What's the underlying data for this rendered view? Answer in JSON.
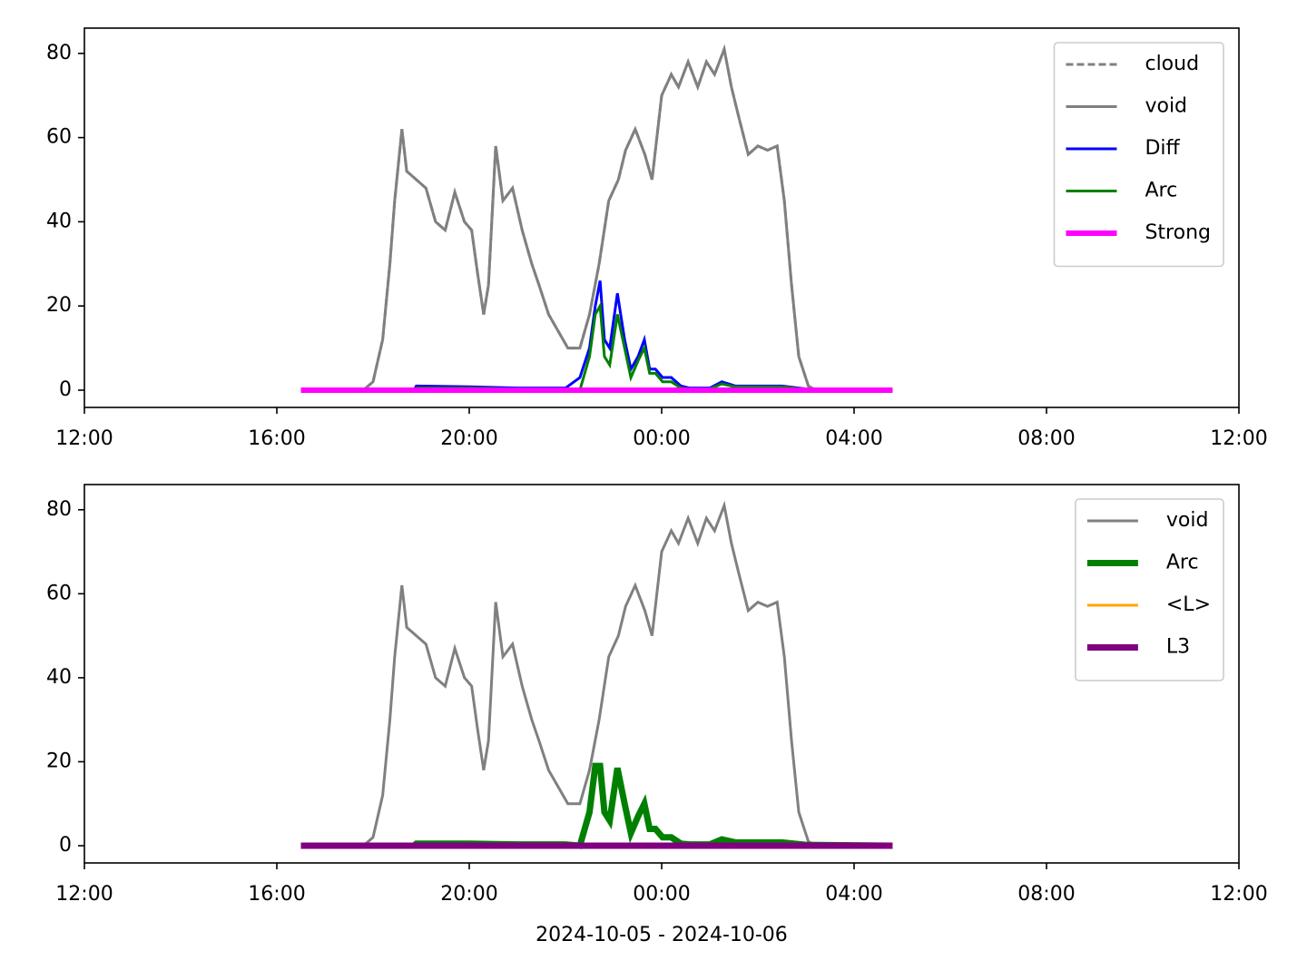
{
  "chart_data": [
    {
      "type": "line",
      "xlim": [
        12,
        36
      ],
      "ylim": [
        -4.1,
        86
      ],
      "xticks": [
        {
          "value": 12,
          "label": "12:00"
        },
        {
          "value": 16,
          "label": "16:00"
        },
        {
          "value": 20,
          "label": "20:00"
        },
        {
          "value": 24,
          "label": "00:00"
        },
        {
          "value": 28,
          "label": "04:00"
        },
        {
          "value": 32,
          "label": "08:00"
        },
        {
          "value": 36,
          "label": "12:00"
        }
      ],
      "yticks": [
        0,
        20,
        40,
        60,
        80
      ],
      "legend": "upper right",
      "series": [
        {
          "name": "cloud",
          "color": "#808080",
          "linestyle": "dashed",
          "linewidth": 1.5,
          "x": [
            16.5,
            17.0,
            17.5,
            17.8,
            18.0,
            18.2,
            18.35,
            18.45,
            18.6,
            18.7,
            18.9,
            19.1,
            19.3,
            19.5,
            19.7,
            19.9,
            20.05,
            20.17,
            20.3,
            20.4,
            20.55,
            20.7,
            20.9,
            21.1,
            21.3,
            21.45,
            21.65,
            21.85,
            22.05,
            22.3,
            22.5,
            22.7,
            22.9,
            23.1,
            23.25,
            23.45,
            23.65,
            23.8,
            24.0,
            24.2,
            24.35,
            24.55,
            24.75,
            24.93,
            25.1,
            25.3,
            25.45,
            25.6,
            25.8,
            26.0,
            26.2,
            26.4,
            26.55,
            26.7,
            26.85,
            27.05,
            27.2,
            28.8
          ],
          "values": [
            0,
            0,
            0,
            0,
            2,
            12,
            30,
            45,
            62,
            52,
            50,
            48,
            40,
            38,
            47,
            40,
            38,
            28,
            18,
            25,
            58,
            45,
            48,
            38,
            30,
            25,
            18,
            14,
            10,
            10,
            18,
            30,
            45,
            50,
            57,
            62,
            56,
            50,
            70,
            75,
            72,
            78,
            72,
            78,
            75,
            81,
            72,
            65,
            56,
            58,
            57,
            58,
            45,
            25,
            8,
            1,
            0,
            0
          ]
        },
        {
          "name": "void",
          "color": "#808080",
          "linewidth": 1.5,
          "x": [
            16.5,
            17.0,
            17.5,
            17.8,
            18.0,
            18.2,
            18.35,
            18.45,
            18.6,
            18.7,
            18.9,
            19.1,
            19.3,
            19.5,
            19.7,
            19.9,
            20.05,
            20.17,
            20.3,
            20.4,
            20.55,
            20.7,
            20.9,
            21.1,
            21.3,
            21.45,
            21.65,
            21.85,
            22.05,
            22.3,
            22.5,
            22.7,
            22.9,
            23.1,
            23.25,
            23.45,
            23.65,
            23.8,
            24.0,
            24.2,
            24.35,
            24.55,
            24.75,
            24.93,
            25.1,
            25.3,
            25.45,
            25.6,
            25.8,
            26.0,
            26.2,
            26.4,
            26.55,
            26.7,
            26.85,
            27.05,
            27.2,
            28.8
          ],
          "values": [
            0,
            0,
            0,
            0,
            2,
            12,
            30,
            45,
            62,
            52,
            50,
            48,
            40,
            38,
            47,
            40,
            38,
            28,
            18,
            25,
            58,
            45,
            48,
            38,
            30,
            25,
            18,
            14,
            10,
            10,
            18,
            30,
            45,
            50,
            57,
            62,
            56,
            50,
            70,
            75,
            72,
            78,
            72,
            78,
            75,
            81,
            72,
            65,
            56,
            58,
            57,
            58,
            45,
            25,
            8,
            1,
            0,
            0
          ]
        },
        {
          "name": "Diff",
          "color": "#0000ff",
          "linewidth": 1.5,
          "x": [
            16.5,
            18.85,
            18.9,
            20.0,
            21.0,
            22.0,
            22.3,
            22.5,
            22.62,
            22.72,
            22.81,
            22.92,
            23.08,
            23.23,
            23.36,
            23.51,
            23.64,
            23.75,
            23.87,
            24.02,
            24.2,
            24.4,
            24.58,
            25.0,
            25.25,
            25.53,
            26.5,
            27.0,
            28.8
          ],
          "values": [
            0,
            0,
            1,
            0.8,
            0.5,
            0.5,
            3,
            10,
            20,
            26,
            12,
            10,
            23,
            12,
            5,
            8,
            12,
            5,
            5,
            3,
            3,
            1,
            0.5,
            0.5,
            2,
            1,
            1,
            0.3,
            0
          ]
        },
        {
          "name": "Arc",
          "color": "#008000",
          "linewidth": 1.5,
          "x": [
            16.5,
            18.85,
            18.9,
            20.0,
            21.0,
            22.0,
            22.3,
            22.5,
            22.62,
            22.72,
            22.81,
            22.92,
            23.08,
            23.23,
            23.36,
            23.51,
            23.64,
            23.75,
            23.87,
            24.02,
            24.2,
            24.4,
            24.58,
            25.0,
            25.25,
            25.53,
            26.5,
            27.0,
            28.8
          ],
          "values": [
            0,
            0,
            0.5,
            0.5,
            0.3,
            0.3,
            0,
            8,
            18,
            20,
            8,
            6,
            18,
            10,
            3,
            7,
            10,
            4,
            4,
            2,
            2,
            0.5,
            0.3,
            0.3,
            1.5,
            0.8,
            0.8,
            0.2,
            0
          ]
        },
        {
          "name": "Strong",
          "color": "#ff00ff",
          "linewidth": 3,
          "x": [
            16.5,
            28.8
          ],
          "values": [
            0,
            0
          ]
        }
      ]
    },
    {
      "type": "line",
      "xlim": [
        12,
        36
      ],
      "ylim": [
        -4.1,
        86
      ],
      "xlabel": "2024-10-05 - 2024-10-06",
      "xticks": [
        {
          "value": 12,
          "label": "12:00"
        },
        {
          "value": 16,
          "label": "16:00"
        },
        {
          "value": 20,
          "label": "20:00"
        },
        {
          "value": 24,
          "label": "00:00"
        },
        {
          "value": 28,
          "label": "04:00"
        },
        {
          "value": 32,
          "label": "08:00"
        },
        {
          "value": 36,
          "label": "12:00"
        }
      ],
      "yticks": [
        0,
        20,
        40,
        60,
        80
      ],
      "legend": "upper right",
      "series": [
        {
          "name": "void",
          "color": "#808080",
          "linewidth": 1.5,
          "x": [
            16.5,
            17.0,
            17.5,
            17.8,
            18.0,
            18.2,
            18.35,
            18.45,
            18.6,
            18.7,
            18.9,
            19.1,
            19.3,
            19.5,
            19.7,
            19.9,
            20.05,
            20.17,
            20.3,
            20.4,
            20.55,
            20.7,
            20.9,
            21.1,
            21.3,
            21.45,
            21.65,
            21.85,
            22.05,
            22.3,
            22.5,
            22.7,
            22.9,
            23.1,
            23.25,
            23.45,
            23.65,
            23.8,
            24.0,
            24.2,
            24.35,
            24.55,
            24.75,
            24.93,
            25.1,
            25.3,
            25.45,
            25.6,
            25.8,
            26.0,
            26.2,
            26.4,
            26.55,
            26.7,
            26.85,
            27.05,
            27.2,
            28.8
          ],
          "values": [
            0,
            0,
            0,
            0,
            2,
            12,
            30,
            45,
            62,
            52,
            50,
            48,
            40,
            38,
            47,
            40,
            38,
            28,
            18,
            25,
            58,
            45,
            48,
            38,
            30,
            25,
            18,
            14,
            10,
            10,
            18,
            30,
            45,
            50,
            57,
            62,
            56,
            50,
            70,
            75,
            72,
            78,
            72,
            78,
            75,
            81,
            72,
            65,
            56,
            58,
            57,
            58,
            45,
            25,
            8,
            1,
            0,
            0
          ]
        },
        {
          "name": "Arc",
          "color": "#008000",
          "linewidth": 3.5,
          "x": [
            16.5,
            18.85,
            18.9,
            20.0,
            21.0,
            22.0,
            22.3,
            22.5,
            22.62,
            22.72,
            22.81,
            22.92,
            23.08,
            23.23,
            23.36,
            23.51,
            23.64,
            23.75,
            23.87,
            24.02,
            24.2,
            24.4,
            24.58,
            25.0,
            25.25,
            25.53,
            26.5,
            27.0,
            28.8
          ],
          "values": [
            0,
            0,
            0.5,
            0.5,
            0.3,
            0.3,
            0,
            8,
            19,
            19,
            8,
            6,
            18.5,
            10,
            3,
            7,
            10,
            4,
            4,
            2,
            2,
            0.5,
            0.3,
            0.3,
            1.5,
            0.8,
            0.8,
            0.2,
            0
          ]
        },
        {
          "name": "<L>",
          "color": "#ffa500",
          "linewidth": 1.5,
          "x": [
            16.5,
            28.8
          ],
          "values": [
            0,
            0
          ]
        },
        {
          "name": "L3",
          "color": "#800080",
          "linewidth": 3.5,
          "x": [
            16.5,
            28.8
          ],
          "values": [
            0,
            0
          ]
        }
      ]
    }
  ]
}
